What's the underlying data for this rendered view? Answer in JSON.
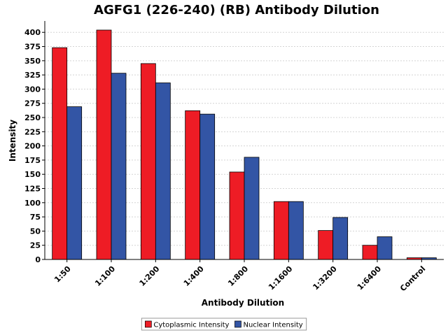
{
  "chart_data": {
    "type": "bar",
    "title": "AGFG1 (226-240) (RB) Antibody Dilution",
    "xlabel": "Antibody Dilution",
    "ylabel": "Intensity",
    "categories": [
      "1:50",
      "1:100",
      "1:200",
      "1:400",
      "1:800",
      "1:1600",
      "1:3200",
      "1:6400",
      "Control"
    ],
    "series": [
      {
        "name": "Cytoplasmic Intensity",
        "color": "#ee1c25",
        "values": [
          373,
          404,
          345,
          262,
          154,
          102,
          51,
          25,
          3
        ]
      },
      {
        "name": "Nuclear Intensity",
        "color": "#3355a5",
        "values": [
          269,
          328,
          311,
          256,
          180,
          102,
          74,
          40,
          3
        ]
      }
    ],
    "ylim": [
      0,
      420
    ],
    "yticks": [
      0,
      25,
      50,
      75,
      100,
      125,
      150,
      175,
      200,
      225,
      250,
      275,
      300,
      325,
      350,
      375,
      400
    ],
    "grid": true,
    "legend_position": "bottom-center"
  }
}
